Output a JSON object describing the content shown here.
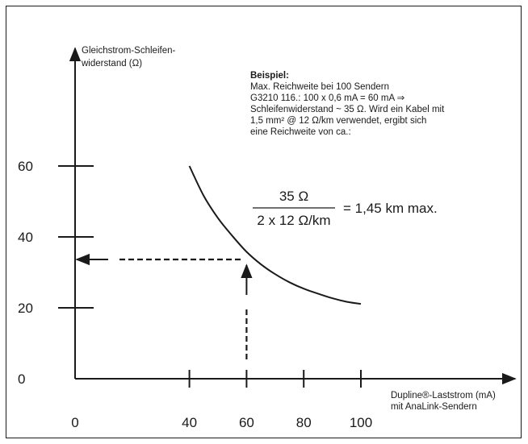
{
  "chart_data": {
    "type": "line",
    "ylabel_lines": [
      "Gleichstrom-Schleifen-",
      "widerstand (Ω)"
    ],
    "xlabel_lines": [
      "Dupline®-Laststrom (mA)",
      "mit AnaLink-Sendern"
    ],
    "x_ticks": [
      0,
      40,
      60,
      80,
      100
    ],
    "y_ticks": [
      0,
      20,
      40,
      60
    ],
    "xlim": [
      0,
      100
    ],
    "ylim": [
      0,
      60
    ],
    "series": [
      {
        "x": [
          40,
          45,
          50,
          55,
          60,
          65,
          70,
          75,
          80,
          85,
          90,
          95,
          100
        ],
        "y": [
          60,
          51.6,
          45.3,
          40.3,
          35.8,
          32.3,
          29.5,
          27.2,
          25.4,
          24.0,
          22.7,
          21.7,
          21.1
        ]
      }
    ],
    "marker": {
      "x": 60,
      "y": 35,
      "arrow_up_label": "60",
      "arrow_left_label": "35"
    }
  },
  "example": {
    "title": "Beispiel:",
    "lines": [
      "Max. Reichweite bei 100 Sendern",
      "G3210 116.: 100 x 0,6 mA = 60 mA ⇒",
      "Schleifenwiderstand ~ 35 Ω. Wird ein Kabel mit",
      "1,5 mm² @ 12 Ω/km verwendet, ergibt sich",
      "eine Reichweite von ca.:"
    ]
  },
  "formula": {
    "numerator": "35 Ω",
    "denominator": "2 x 12 Ω/km",
    "result": "= 1,45 km max."
  }
}
